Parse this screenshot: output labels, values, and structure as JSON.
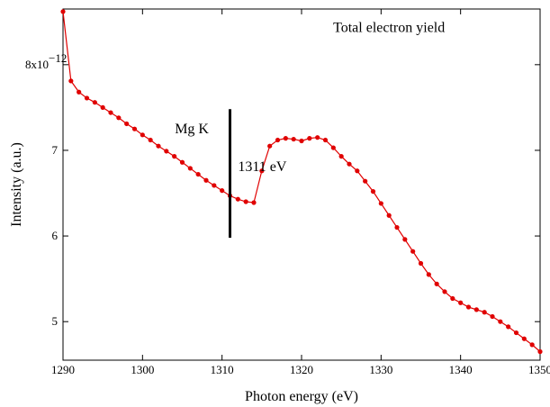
{
  "chart_data": {
    "type": "line",
    "xlabel": "Photon energy (eV)",
    "ylabel": "Intensity (a.u.)",
    "xlim": [
      1290,
      1350
    ],
    "ylim": [
      4.55,
      8.65
    ],
    "x_ticks": [
      1290,
      1300,
      1310,
      1320,
      1330,
      1340,
      1350
    ],
    "x_tick_labels": [
      "1290",
      "1300",
      "1310",
      "1320",
      "1330",
      "1340",
      "1350"
    ],
    "y_ticks": [
      5,
      6,
      7,
      8
    ],
    "y_tick_labels": [
      "5",
      "6",
      "7",
      "8x10"
    ],
    "y_top_exponent": "−12",
    "annotations": {
      "top_right": "Total electron yield",
      "edge_label": "Mg K",
      "edge_energy": "1311 eV"
    },
    "edge_marker": {
      "x": 1311,
      "y_range": [
        5.98,
        7.48
      ]
    },
    "series": [
      {
        "color": "#e00000",
        "x": [
          1290,
          1291,
          1292,
          1293,
          1294,
          1295,
          1296,
          1297,
          1298,
          1299,
          1300,
          1301,
          1302,
          1303,
          1304,
          1305,
          1306,
          1307,
          1308,
          1309,
          1310,
          1311,
          1312,
          1313,
          1314,
          1315,
          1316,
          1317,
          1318,
          1319,
          1320,
          1321,
          1322,
          1323,
          1324,
          1325,
          1326,
          1327,
          1328,
          1329,
          1330,
          1331,
          1332,
          1333,
          1334,
          1335,
          1336,
          1337,
          1338,
          1339,
          1340,
          1341,
          1342,
          1343,
          1344,
          1345,
          1346,
          1347,
          1348,
          1349,
          1350
        ],
        "values": [
          8.62,
          7.81,
          7.68,
          7.61,
          7.56,
          7.5,
          7.44,
          7.38,
          7.31,
          7.25,
          7.18,
          7.12,
          7.05,
          6.99,
          6.93,
          6.86,
          6.79,
          6.72,
          6.65,
          6.59,
          6.53,
          6.47,
          6.43,
          6.4,
          6.39,
          6.76,
          7.05,
          7.12,
          7.14,
          7.13,
          7.11,
          7.14,
          7.15,
          7.12,
          7.03,
          6.93,
          6.84,
          6.76,
          6.64,
          6.52,
          6.38,
          6.24,
          6.1,
          5.96,
          5.82,
          5.68,
          5.55,
          5.44,
          5.35,
          5.27,
          5.22,
          5.17,
          5.14,
          5.11,
          5.06,
          5.0,
          4.94,
          4.87,
          4.8,
          4.73,
          4.65
        ]
      }
    ]
  }
}
